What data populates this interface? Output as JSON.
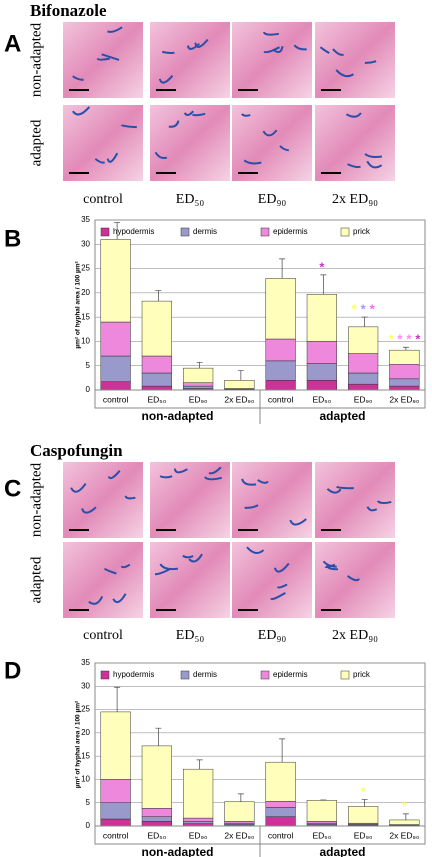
{
  "panels": [
    {
      "title": "Bifonazole",
      "label": "A",
      "rows": [
        "non-adapted",
        "adapted"
      ],
      "columns": [
        "control",
        "ED₅₀",
        "ED₉₀",
        "2x ED₉₀"
      ]
    },
    {
      "title": "Caspofungin",
      "label": "C",
      "rows": [
        "non-adapted",
        "adapted"
      ],
      "columns": [
        "control",
        "ED₅₀",
        "ED₉₀",
        "2x ED₉₀"
      ]
    }
  ],
  "chart_data": [
    {
      "type": "bar",
      "stacked": true,
      "label": "B",
      "ylabel": "µm² of hyphal area / 100 µm²",
      "categories": [
        "control",
        "ED₅₀",
        "ED₉₀",
        "2x ED₉₀",
        "control",
        "ED₅₀",
        "ED₉₀",
        "2x ED₉₀"
      ],
      "groups": [
        "non-adapted",
        "adapted"
      ],
      "series": [
        {
          "name": "hypodermis",
          "color": "#cc3399",
          "values": [
            1.7,
            0.8,
            0.3,
            0.1,
            2,
            2,
            1.2,
            0.8
          ],
          "errors": [
            0.8,
            0.5,
            0.2,
            0.1,
            0.8,
            0.8,
            0.4,
            0.3
          ]
        },
        {
          "name": "dermis",
          "color": "#9999cc",
          "values": [
            5.3,
            2.7,
            0.5,
            0.1,
            4,
            3.5,
            2.3,
            1.5
          ],
          "errors": [
            1.8,
            1,
            0.4,
            0.1,
            1.5,
            1.5,
            0.8,
            0.5
          ]
        },
        {
          "name": "epidermis",
          "color": "#ee88dd",
          "values": [
            7,
            3.5,
            0.7,
            0.1,
            4.5,
            4.5,
            4,
            3
          ],
          "errors": [
            2.5,
            2,
            0.8,
            0.1,
            2.5,
            2.5,
            1.2,
            0.7
          ]
        },
        {
          "name": "prick",
          "color": "#ffffbb",
          "values": [
            17,
            11.3,
            3,
            1.7,
            12.5,
            9.7,
            5.5,
            2.9
          ],
          "errors": [
            3.5,
            2.2,
            1.2,
            2,
            4,
            4,
            2,
            0.6
          ]
        }
      ],
      "significance": [
        [],
        [],
        [],
        [],
        [],
        [
          "*"
        ],
        [
          "*",
          "*",
          "*"
        ],
        [
          "*",
          "*",
          "*",
          "*"
        ]
      ],
      "significance_colors": [
        [],
        [],
        [],
        [],
        [],
        [
          "#cc33cc"
        ],
        [
          "#ffff66",
          "#9999ff",
          "#ff66ff"
        ],
        [
          "#ffff66",
          "#ff88ff",
          "#ff88ff",
          "#cc33cc"
        ]
      ],
      "ylim": [
        0,
        35
      ],
      "yticks": [
        0,
        5,
        10,
        15,
        20,
        25,
        30,
        35
      ],
      "grid": true,
      "legend": "top"
    },
    {
      "type": "bar",
      "stacked": true,
      "label": "D",
      "ylabel": "µm² of hyphal area / 100 µm²",
      "categories": [
        "control",
        "ED₅₀",
        "ED₉₀",
        "2x ED₉₀",
        "control",
        "ED₅₀",
        "ED₉₀",
        "2x ED₉₀"
      ],
      "groups": [
        "non-adapted",
        "adapted"
      ],
      "series": [
        {
          "name": "hypodermis",
          "color": "#cc3399",
          "values": [
            1.5,
            1,
            0.5,
            0.3,
            2,
            0.3,
            0.2,
            0.1
          ],
          "errors": [
            0.6,
            0.4,
            0.2,
            0.1,
            0.8,
            0.1,
            0.1,
            0.1
          ]
        },
        {
          "name": "dermis",
          "color": "#9999cc",
          "values": [
            3.5,
            1,
            0.5,
            0.3,
            2,
            0.3,
            0.2,
            0.1
          ],
          "errors": [
            1.5,
            0.5,
            0.3,
            0.2,
            1,
            0.1,
            0.1,
            0.1
          ]
        },
        {
          "name": "epidermis",
          "color": "#ee88dd",
          "values": [
            5,
            1.8,
            0.7,
            0.4,
            1.3,
            0.4,
            0.2,
            0.1
          ],
          "errors": [
            2.5,
            0.8,
            0.4,
            0.2,
            1,
            0.2,
            0.1,
            0.1
          ]
        },
        {
          "name": "prick",
          "color": "#ffffbb",
          "values": [
            14.5,
            13.4,
            10.5,
            4.2,
            8.4,
            4.5,
            3.6,
            1
          ],
          "errors": [
            5.3,
            3.8,
            2,
            1.7,
            5,
            0.1,
            1.5,
            1.3
          ]
        }
      ],
      "significance": [
        [],
        [],
        [],
        [],
        [],
        [],
        [
          "*"
        ],
        [
          "*"
        ]
      ],
      "significance_colors": [
        [],
        [],
        [],
        [],
        [],
        [],
        [
          "#ffff66"
        ],
        [
          "#ffff66"
        ]
      ],
      "ylim": [
        0,
        35
      ],
      "yticks": [
        0,
        5,
        10,
        15,
        20,
        25,
        30,
        35
      ],
      "grid": true,
      "legend": "top"
    }
  ]
}
